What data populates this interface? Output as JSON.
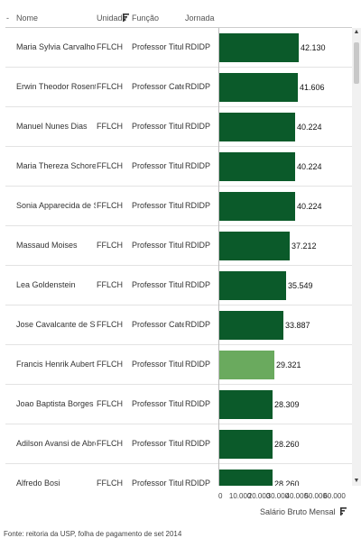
{
  "header": {
    "sort_glyph": "-",
    "columns": [
      "Nome",
      "Unidade",
      "Função",
      "Jornada"
    ]
  },
  "colors": {
    "bar": "#0b5a2a",
    "bar_highlight": "#6aaa5e"
  },
  "rows": [
    {
      "nome": "Maria Sylvia Carvalho Franco",
      "unidade": "FFLCH",
      "funcao": "Professor Titular",
      "jornada": "RDIDP",
      "valor": 42130,
      "valor_label": "42.130",
      "highlight": false
    },
    {
      "nome": "Erwin Theodor Rosenthal",
      "unidade": "FFLCH",
      "funcao": "Professor Catedratico",
      "jornada": "RDIDP",
      "valor": 41606,
      "valor_label": "41.606",
      "highlight": false
    },
    {
      "nome": "Manuel Nunes Dias",
      "unidade": "FFLCH",
      "funcao": "Professor Titular",
      "jornada": "RDIDP",
      "valor": 40224,
      "valor_label": "40.224",
      "highlight": false
    },
    {
      "nome": "Maria Thereza Schorer Petrone",
      "unidade": "FFLCH",
      "funcao": "Professor Titular",
      "jornada": "RDIDP",
      "valor": 40224,
      "valor_label": "40.224",
      "highlight": false
    },
    {
      "nome": "Sonia Apparecida de Siqueira",
      "unidade": "FFLCH",
      "funcao": "Professor Titular",
      "jornada": "RDIDP",
      "valor": 40224,
      "valor_label": "40.224",
      "highlight": false
    },
    {
      "nome": "Massaud Moises",
      "unidade": "FFLCH",
      "funcao": "Professor Titular",
      "jornada": "RDIDP",
      "valor": 37212,
      "valor_label": "37.212",
      "highlight": false
    },
    {
      "nome": "Lea Goldenstein",
      "unidade": "FFLCH",
      "funcao": "Professor Titular",
      "jornada": "RDIDP",
      "valor": 35549,
      "valor_label": "35.549",
      "highlight": false
    },
    {
      "nome": "Jose Cavalcante de Souza",
      "unidade": "FFLCH",
      "funcao": "Professor Catedratico",
      "jornada": "RDIDP",
      "valor": 33887,
      "valor_label": "33.887",
      "highlight": false
    },
    {
      "nome": "Francis Henrik Aubert",
      "unidade": "FFLCH",
      "funcao": "Professor Titular",
      "jornada": "RDIDP",
      "valor": 29321,
      "valor_label": "29.321",
      "highlight": true
    },
    {
      "nome": "Joao Baptista Borges Pereira",
      "unidade": "FFLCH",
      "funcao": "Professor Titular",
      "jornada": "RDIDP",
      "valor": 28309,
      "valor_label": "28.309",
      "highlight": false
    },
    {
      "nome": "Adilson Avansi de Abreu",
      "unidade": "FFLCH",
      "funcao": "Professor Titular",
      "jornada": "RDIDP",
      "valor": 28260,
      "valor_label": "28.260",
      "highlight": false
    },
    {
      "nome": "Alfredo Bosi",
      "unidade": "FFLCH",
      "funcao": "Professor Titular",
      "jornada": "RDIDP",
      "valor": 28260,
      "valor_label": "28.260",
      "highlight": false
    }
  ],
  "axis": {
    "ticks": [
      0,
      10000,
      20000,
      30000,
      40000,
      50000,
      60000
    ],
    "tick_labels": [
      "0",
      "10.000",
      "20.000",
      "30.000",
      "40.000",
      "50.000",
      "60.000"
    ],
    "range": [
      0,
      60000
    ],
    "label": "Salário Bruto Mensal"
  },
  "footer": "Fonte: reitoria da USP, folha de pagamento de set 2014"
}
